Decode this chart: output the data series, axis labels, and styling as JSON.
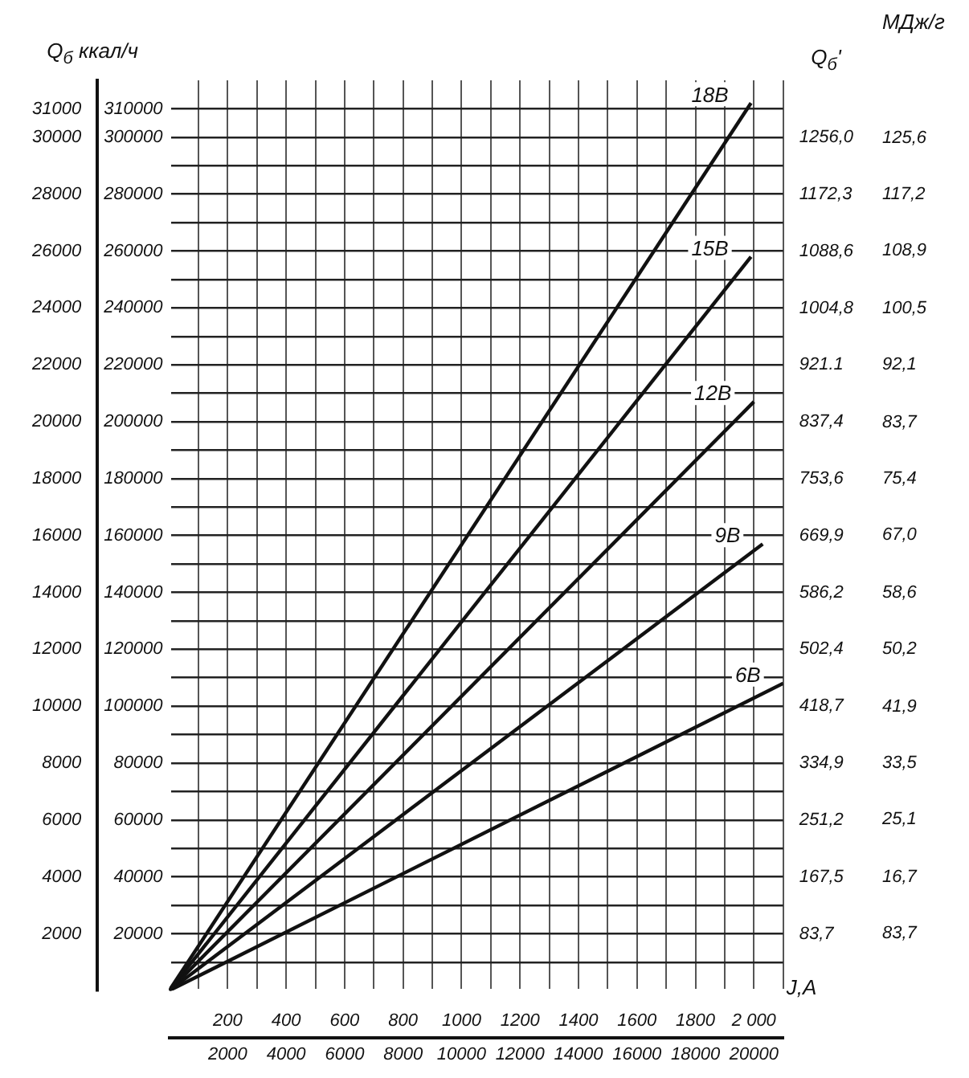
{
  "chart_data": {
    "type": "line",
    "xlabel": "J,A",
    "ylabel": "Q$_{б}$ ккал/ч",
    "y3label": "Q$_{б}$'",
    "annotations": [
      "МДж/г",
      "83,7",
      "16,7",
      "25,1",
      "33,5",
      "41,9",
      "50,2",
      "58,6",
      "67,0",
      "75,4",
      "83,7",
      "92,1",
      "100,5",
      "108,9",
      "117,2",
      "125,6"
    ],
    "series": [
      {
        "name": "18В",
        "color": "#111111",
        "x": [
          0,
          19900
        ],
        "values": [
          0,
          31200
        ]
      },
      {
        "name": "15В",
        "color": "#111111",
        "x": [
          0,
          19900
        ],
        "values": [
          0,
          25800
        ]
      },
      {
        "name": "12В",
        "color": "#111111",
        "x": [
          0,
          20000
        ],
        "values": [
          0,
          20700
        ]
      },
      {
        "name": "9В",
        "color": "#111111",
        "x": [
          0,
          20300
        ],
        "values": [
          0,
          15700
        ]
      },
      {
        "name": "6В",
        "color": "#111111",
        "x": [
          0,
          21000
        ],
        "values": [
          0,
          10800
        ]
      }
    ],
    "xlim": [
      0,
      21000
    ],
    "xticks": [
      {
        "value": 1000,
        "label": null
      },
      2000,
      {
        "value": 3000,
        "label": null
      },
      4000,
      {
        "value": 5000,
        "label": null
      },
      6000,
      {
        "value": 7000,
        "label": null
      },
      8000,
      {
        "value": 9000,
        "label": null
      },
      10000,
      {
        "value": 11000,
        "label": null
      },
      12000,
      {
        "value": 13000,
        "label": null
      },
      14000,
      {
        "value": 15000,
        "label": null
      },
      16000,
      {
        "value": 17000,
        "label": null
      },
      18000,
      {
        "value": 19000,
        "label": null
      },
      20000,
      {
        "value": 21000,
        "label": null
      }
    ],
    "x2lim": [
      0,
      2100
    ],
    "x2ticks": [
      200,
      400,
      600,
      800,
      1000,
      1200,
      1400,
      1600,
      1800,
      {
        "value": 2000,
        "label": "2 000"
      }
    ],
    "ylim": [
      0,
      32000
    ],
    "yticks": [
      {
        "value": 1000,
        "label": null
      },
      2000,
      {
        "value": 3000,
        "label": null
      },
      4000,
      {
        "value": 5000,
        "label": null
      },
      6000,
      {
        "value": 7000,
        "label": null
      },
      8000,
      {
        "value": 9000,
        "label": null
      },
      10000,
      {
        "value": 11000,
        "label": null
      },
      12000,
      {
        "value": 13000,
        "label": null
      },
      14000,
      {
        "value": 15000,
        "label": null
      },
      16000,
      {
        "value": 17000,
        "label": null
      },
      18000,
      {
        "value": 19000,
        "label": null
      },
      20000,
      {
        "value": 21000,
        "label": null
      },
      22000,
      {
        "value": 23000,
        "label": null
      },
      24000,
      {
        "value": 25000,
        "label": null
      },
      26000,
      {
        "value": 27000,
        "label": null
      },
      28000,
      {
        "value": 29000,
        "label": null
      },
      30000,
      31000
    ],
    "y2lim": [
      0,
      320000
    ],
    "y2ticks": [
      20000,
      40000,
      60000,
      80000,
      100000,
      120000,
      140000,
      160000,
      180000,
      200000,
      220000,
      240000,
      260000,
      280000,
      300000,
      310000
    ],
    "y3lim": [
      0,
      1340
    ],
    "y3ticks": [
      {
        "value": 83.7,
        "label": "83,7"
      },
      {
        "value": 167.5,
        "label": "167,5"
      },
      {
        "value": 251.2,
        "label": "251,2"
      },
      {
        "value": 334.9,
        "label": "334,9"
      },
      {
        "value": 418.7,
        "label": "418,7"
      },
      {
        "value": 502.4,
        "label": "502,4"
      },
      {
        "value": 586.2,
        "label": "586,2"
      },
      {
        "value": 669.9,
        "label": "669,9"
      },
      {
        "value": 753.6,
        "label": "753,6"
      },
      {
        "value": 837.4,
        "label": "837,4"
      },
      921.1,
      {
        "value": 1004.8,
        "label": "1004,8"
      },
      {
        "value": 1088.6,
        "label": "1088,6"
      },
      {
        "value": 1172.3,
        "label": "1172,3"
      },
      {
        "value": 1256.0,
        "label": "1256,0"
      }
    ],
    "grid": true,
    "legend": false,
    "marker": "none",
    "line_style": "solid"
  }
}
